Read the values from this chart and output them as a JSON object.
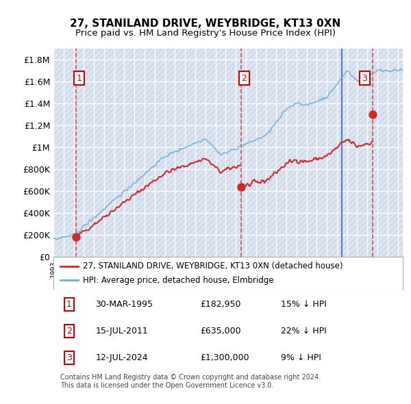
{
  "title": "27, STANILAND DRIVE, WEYBRIDGE, KT13 0XN",
  "subtitle": "Price paid vs. HM Land Registry's House Price Index (HPI)",
  "ylabel": "",
  "ylim": [
    0,
    1900000
  ],
  "yticks": [
    0,
    200000,
    400000,
    600000,
    800000,
    1000000,
    1200000,
    1400000,
    1600000,
    1800000
  ],
  "ytick_labels": [
    "£0",
    "£200K",
    "£400K",
    "£600K",
    "£800K",
    "£1M",
    "£1.2M",
    "£1.4M",
    "£1.6M",
    "£1.8M"
  ],
  "sale_dates": [
    "1995-03-30",
    "2011-07-15",
    "2024-07-12"
  ],
  "sale_prices": [
    182950,
    635000,
    1300000
  ],
  "sale_labels": [
    "1",
    "2",
    "3"
  ],
  "hpi_color": "#6baed6",
  "sale_color": "#d62728",
  "vline_color": "#d62728",
  "legend_label_sale": "27, STANILAND DRIVE, WEYBRIDGE, KT13 0XN (detached house)",
  "legend_label_hpi": "HPI: Average price, detached house, Elmbridge",
  "table_rows": [
    [
      "1",
      "30-MAR-1995",
      "£182,950",
      "15% ↓ HPI"
    ],
    [
      "2",
      "15-JUL-2011",
      "£635,000",
      "22% ↓ HPI"
    ],
    [
      "3",
      "12-JUL-2024",
      "£1,300,000",
      "9% ↓ HPI"
    ]
  ],
  "footer": "Contains HM Land Registry data © Crown copyright and database right 2024.\nThis data is licensed under the Open Government Licence v3.0.",
  "background_hatch_color": "#d0d8e8",
  "plot_bg_color": "#e8eef8",
  "grid_color": "#ffffff"
}
